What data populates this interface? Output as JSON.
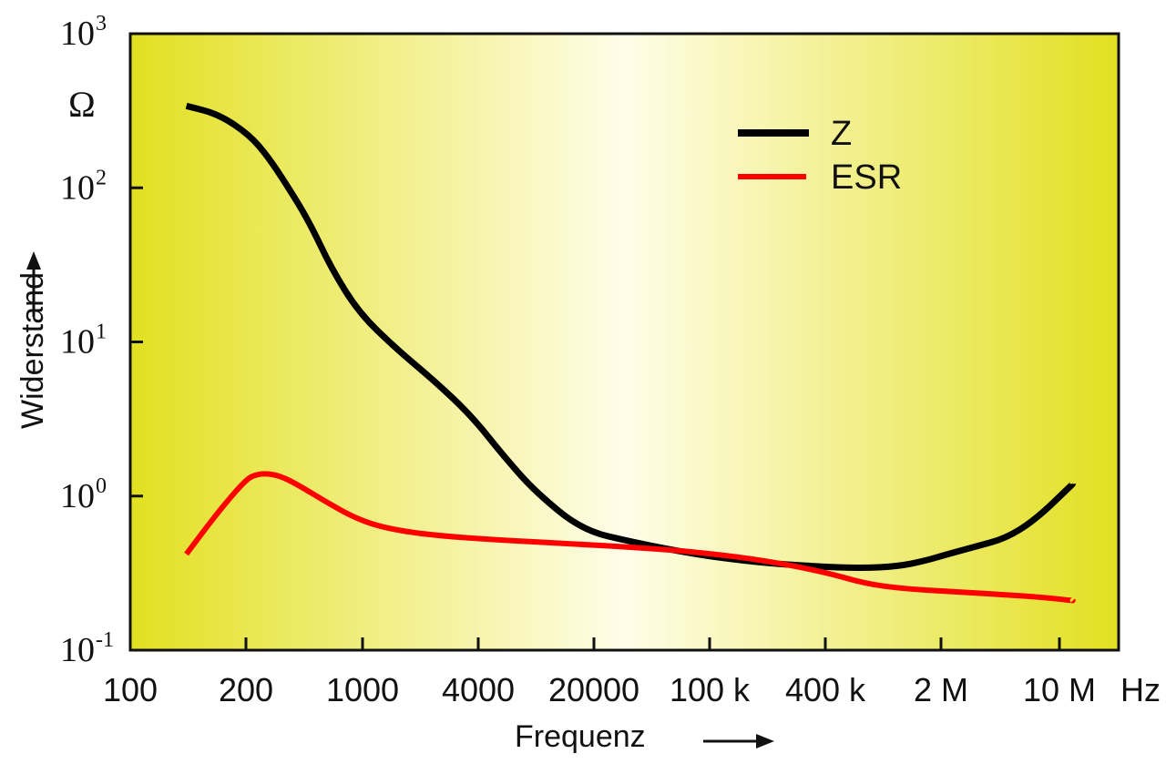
{
  "chart_data": {
    "type": "line",
    "title": "",
    "xlabel": "Frequenz",
    "ylabel": "Widerstand",
    "y_unit": "Ω",
    "x_unit": "Hz",
    "y_scale": "log",
    "ylim": [
      0.1,
      1000
    ],
    "y_ticks": [
      {
        "base": "10",
        "exp": "3"
      },
      {
        "base": "10",
        "exp": "2"
      },
      {
        "base": "10",
        "exp": "1"
      },
      {
        "base": "10",
        "exp": "0"
      },
      {
        "base": "10",
        "exp": "-1"
      }
    ],
    "x_tick_labels": [
      "100",
      "200",
      "1000",
      "4000",
      "20000",
      "100 k",
      "400 k",
      "2 M",
      "10 M"
    ],
    "x_tick_hz": [
      100,
      200,
      1000,
      4000,
      20000,
      100000,
      400000,
      2000000,
      10000000
    ],
    "series": [
      {
        "name": "Z",
        "color": "#000000",
        "x_hz": [
          140,
          170,
          210,
          270,
          350,
          480,
          650,
          950,
          1500,
          2400,
          3700,
          6000,
          9000,
          17000,
          35000,
          80000,
          180000,
          350000,
          650000,
          1100000,
          1600000,
          2200000,
          3200000,
          4800000,
          7200000,
          12000000
        ],
        "y": [
          340,
          300,
          220,
          160,
          105,
          60,
          30,
          15.5,
          9,
          5.5,
          3.3,
          1.7,
          1.05,
          0.6,
          0.5,
          0.42,
          0.37,
          0.35,
          0.34,
          0.35,
          0.38,
          0.42,
          0.47,
          0.53,
          0.7,
          1.2
        ]
      },
      {
        "name": "ESR",
        "color": "#ff0000",
        "x_hz": [
          140,
          170,
          200,
          230,
          270,
          320,
          400,
          600,
          900,
          1300,
          2200,
          5000,
          15000,
          40000,
          90000,
          200000,
          400000,
          700000,
          1200000,
          2300000,
          4500000,
          8000000,
          12000000
        ],
        "y": [
          0.42,
          0.8,
          1.28,
          1.38,
          1.4,
          1.35,
          1.2,
          0.92,
          0.72,
          0.62,
          0.56,
          0.52,
          0.49,
          0.46,
          0.43,
          0.38,
          0.32,
          0.27,
          0.25,
          0.24,
          0.23,
          0.22,
          0.21
        ]
      }
    ],
    "legend": {
      "position": "top-right",
      "entries": [
        "Z",
        "ESR"
      ]
    },
    "background_gradient": {
      "edge": "#e2e020",
      "center": "#fffde8"
    },
    "grid": false
  }
}
